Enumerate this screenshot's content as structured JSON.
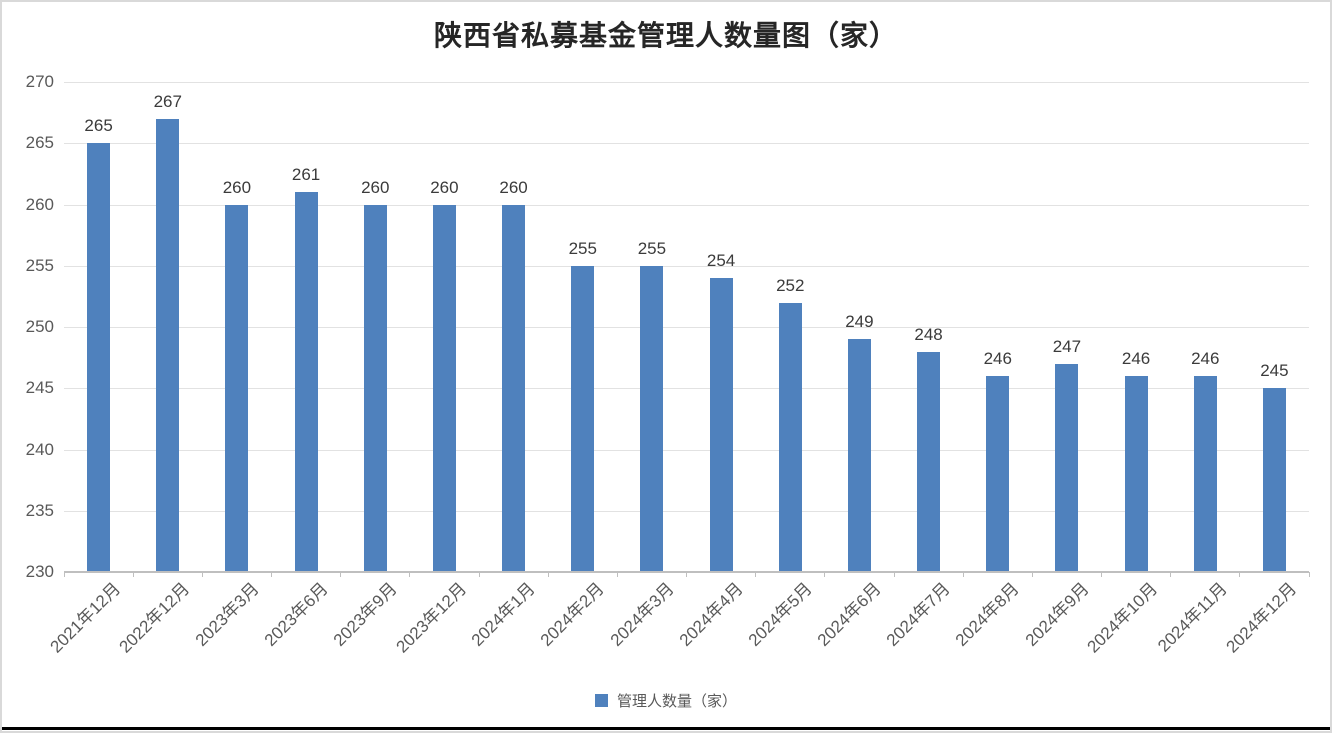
{
  "chart_data": {
    "type": "bar",
    "title": "陕西省私募基金管理人数量图（家）",
    "categories": [
      "2021年12月",
      "2022年12月",
      "2023年3月",
      "2023年6月",
      "2023年9月",
      "2023年12月",
      "2024年1月",
      "2024年2月",
      "2024年3月",
      "2024年4月",
      "2024年5月",
      "2024年6月",
      "2024年7月",
      "2024年8月",
      "2024年9月",
      "2024年10月",
      "2024年11月",
      "2024年12月"
    ],
    "series": [
      {
        "name": "管理人数量（家）",
        "values": [
          265,
          267,
          260,
          261,
          260,
          260,
          260,
          255,
          255,
          254,
          252,
          249,
          248,
          246,
          247,
          246,
          246,
          245
        ],
        "color": "#4F81BD"
      }
    ],
    "xlabel": "",
    "ylabel": "",
    "ylim": [
      230,
      270
    ],
    "yticks": [
      270,
      265,
      260,
      255,
      250,
      245,
      240,
      235,
      230
    ],
    "grid": true,
    "data_labels": true,
    "legend_position": "bottom"
  },
  "colors": {
    "bar": "#4F81BD",
    "gridline": "#E2E2E2",
    "axis_line": "#BFBFBF",
    "value_label": "#3B3B3B",
    "tick_label": "#595959",
    "title": "#262626",
    "legend_text": "#595959",
    "frame_border": "#D9D9D9",
    "bottom_bar": "#000000"
  }
}
